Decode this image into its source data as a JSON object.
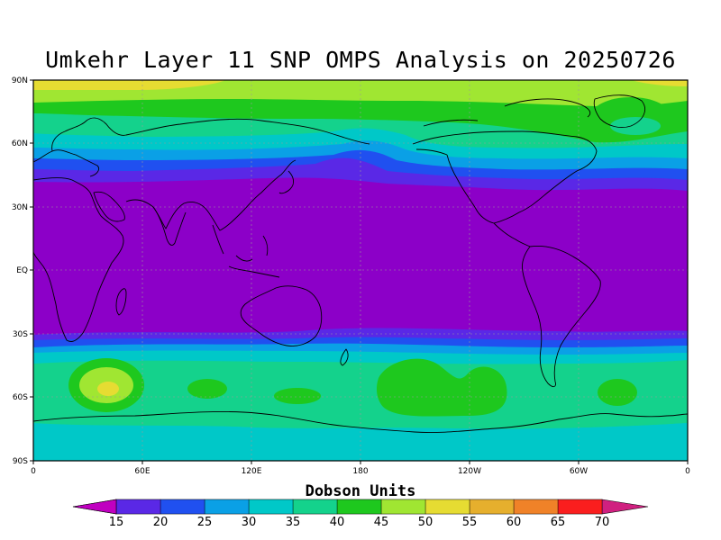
{
  "title": "Umkehr Layer 11 SNP OMPS Analysis on 20250726",
  "lat_ticks": [
    "90N",
    "60N",
    "30N",
    "EQ",
    "30S",
    "60S",
    "90S"
  ],
  "lon_ticks": [
    "0",
    "60E",
    "120E",
    "180",
    "120W",
    "60W",
    "0"
  ],
  "colorbar": {
    "title": "Dobson Units",
    "labels": [
      "15",
      "20",
      "25",
      "30",
      "35",
      "40",
      "45",
      "50",
      "55",
      "60",
      "65",
      "70"
    ],
    "under_color": "#c000c0",
    "over_color": "#d02080",
    "colors": [
      "#8c00c8",
      "#5a28e6",
      "#2050f0",
      "#0aa0e6",
      "#00c8c8",
      "#14d28c",
      "#1ec81e",
      "#a0e632",
      "#e6dc32",
      "#e6af2d",
      "#f08228",
      "#fa1e1e",
      "#d02080"
    ]
  },
  "field_colors": {
    "tropics": "#8c00c8",
    "band_20": "#5a28e6",
    "band_25": "#2050f0",
    "band_30": "#0aa0e6",
    "band_35": "#00c8c8",
    "band_40": "#14d28c",
    "band_45": "#1ec81e",
    "band_50": "#a0e632",
    "band_55": "#e6dc32"
  }
}
